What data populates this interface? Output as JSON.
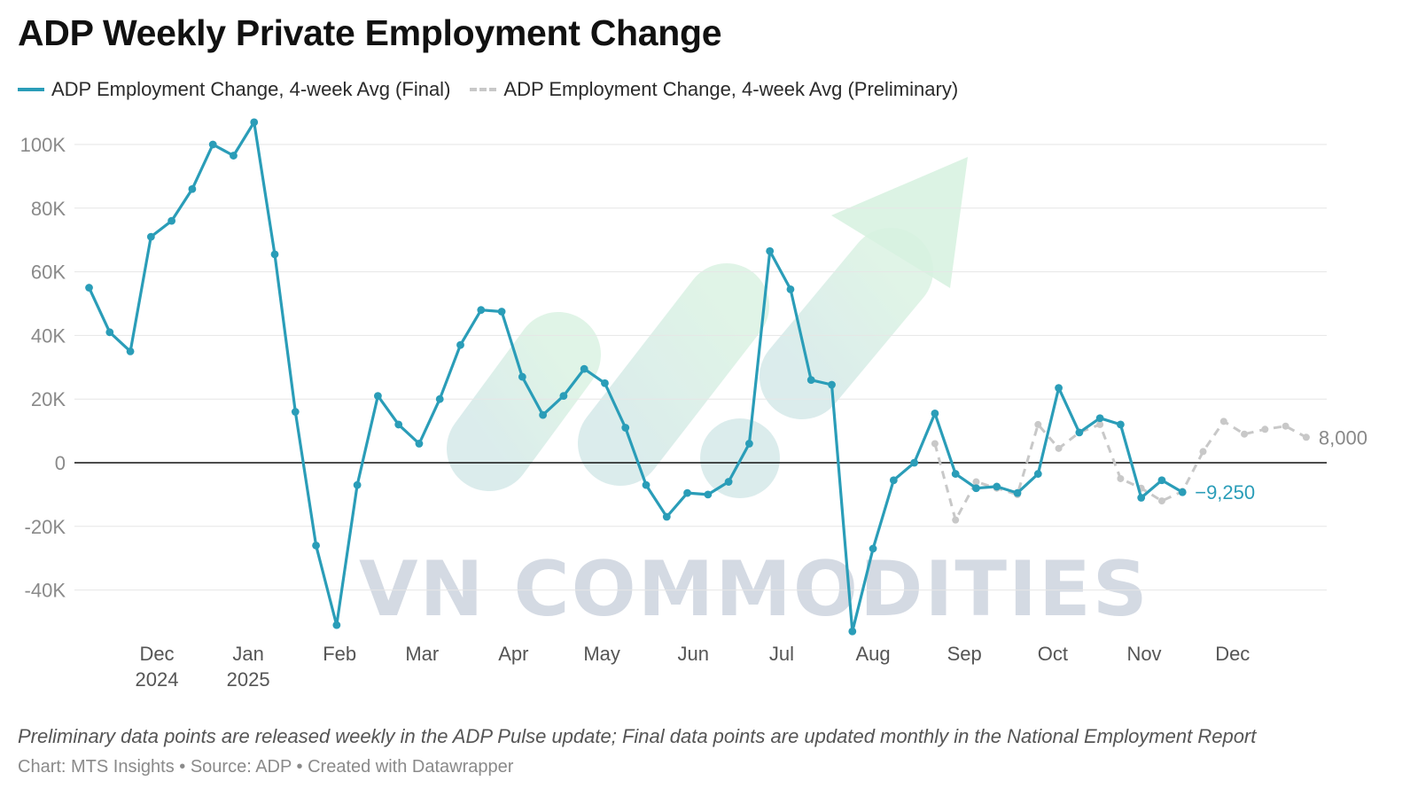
{
  "chart_data": {
    "type": "line",
    "title": "ADP Weekly Private Employment Change",
    "legend": [
      {
        "label": "ADP Employment Change, 4-week Avg (Final)",
        "color": "#2a9db8",
        "style": "solid"
      },
      {
        "label": "ADP Employment Change, 4-week Avg (Preliminary)",
        "color": "#c8c8c8",
        "style": "dashed"
      }
    ],
    "legend_position": "top-left",
    "y_ticks": [
      {
        "value": 100000,
        "label": "100K"
      },
      {
        "value": 80000,
        "label": "80K"
      },
      {
        "value": 60000,
        "label": "60K"
      },
      {
        "value": 40000,
        "label": "40K"
      },
      {
        "value": 20000,
        "label": "20K"
      },
      {
        "value": 0,
        "label": "0"
      },
      {
        "value": -20000,
        "label": "-20K"
      },
      {
        "value": -40000,
        "label": "-40K"
      }
    ],
    "ylim": [
      -55000,
      108000
    ],
    "grid": true,
    "x_ticks": [
      {
        "date": "2024-12-01",
        "label": "Dec",
        "sub": "2024"
      },
      {
        "date": "2025-01-01",
        "label": "Jan",
        "sub": "2025"
      },
      {
        "date": "2025-02-01",
        "label": "Feb"
      },
      {
        "date": "2025-03-01",
        "label": "Mar"
      },
      {
        "date": "2025-04-01",
        "label": "Apr"
      },
      {
        "date": "2025-05-01",
        "label": "May"
      },
      {
        "date": "2025-06-01",
        "label": "Jun"
      },
      {
        "date": "2025-07-01",
        "label": "Jul"
      },
      {
        "date": "2025-08-01",
        "label": "Aug"
      },
      {
        "date": "2025-09-01",
        "label": "Sep"
      },
      {
        "date": "2025-10-01",
        "label": "Oct"
      },
      {
        "date": "2025-11-01",
        "label": "Nov"
      },
      {
        "date": "2025-12-01",
        "label": "Dec"
      }
    ],
    "series": [
      {
        "name": "ADP Employment Change, 4-week Avg (Final)",
        "color": "#2a9db8",
        "style": "solid",
        "end_label": "−9,250",
        "points": [
          [
            "2024-11-08",
            55000
          ],
          [
            "2024-11-15",
            41000
          ],
          [
            "2024-11-22",
            35000
          ],
          [
            "2024-11-29",
            71000
          ],
          [
            "2024-12-06",
            76000
          ],
          [
            "2024-12-13",
            86000
          ],
          [
            "2024-12-20",
            100000
          ],
          [
            "2024-12-27",
            96500
          ],
          [
            "2025-01-03",
            107000
          ],
          [
            "2025-01-10",
            65500
          ],
          [
            "2025-01-17",
            16000
          ],
          [
            "2025-01-24",
            -26000
          ],
          [
            "2025-01-31",
            -51000
          ],
          [
            "2025-02-07",
            -7000
          ],
          [
            "2025-02-14",
            21000
          ],
          [
            "2025-02-21",
            12000
          ],
          [
            "2025-02-28",
            6000
          ],
          [
            "2025-03-07",
            20000
          ],
          [
            "2025-03-14",
            37000
          ],
          [
            "2025-03-21",
            48000
          ],
          [
            "2025-03-28",
            47500
          ],
          [
            "2025-04-04",
            27000
          ],
          [
            "2025-04-11",
            15000
          ],
          [
            "2025-04-18",
            21000
          ],
          [
            "2025-04-25",
            29500
          ],
          [
            "2025-05-02",
            25000
          ],
          [
            "2025-05-09",
            11000
          ],
          [
            "2025-05-16",
            -7000
          ],
          [
            "2025-05-23",
            -17000
          ],
          [
            "2025-05-30",
            -9500
          ],
          [
            "2025-06-06",
            -10000
          ],
          [
            "2025-06-13",
            -6000
          ],
          [
            "2025-06-20",
            6000
          ],
          [
            "2025-06-27",
            66500
          ],
          [
            "2025-07-04",
            54500
          ],
          [
            "2025-07-11",
            26000
          ],
          [
            "2025-07-18",
            24500
          ],
          [
            "2025-07-25",
            -53000
          ],
          [
            "2025-08-01",
            -27000
          ],
          [
            "2025-08-08",
            -5500
          ],
          [
            "2025-08-15",
            0
          ],
          [
            "2025-08-22",
            15500
          ],
          [
            "2025-08-29",
            -3500
          ],
          [
            "2025-09-05",
            -8000
          ],
          [
            "2025-09-12",
            -7500
          ],
          [
            "2025-09-19",
            -9500
          ],
          [
            "2025-09-26",
            -3500
          ],
          [
            "2025-10-03",
            23500
          ],
          [
            "2025-10-10",
            9500
          ],
          [
            "2025-10-17",
            14000
          ],
          [
            "2025-10-24",
            12000
          ],
          [
            "2025-10-31",
            -11000
          ],
          [
            "2025-11-07",
            -5500
          ],
          [
            "2025-11-14",
            -9250
          ]
        ]
      },
      {
        "name": "ADP Employment Change, 4-week Avg (Preliminary)",
        "color": "#c8c8c8",
        "style": "dashed",
        "end_label": "8,000",
        "points": [
          [
            "2025-08-22",
            6000
          ],
          [
            "2025-08-29",
            -18000
          ],
          [
            "2025-09-05",
            -6000
          ],
          [
            "2025-09-12",
            -8000
          ],
          [
            "2025-09-19",
            -10000
          ],
          [
            "2025-09-26",
            12000
          ],
          [
            "2025-10-03",
            4500
          ],
          [
            "2025-10-10",
            9500
          ],
          [
            "2025-10-17",
            12000
          ],
          [
            "2025-10-24",
            -5000
          ],
          [
            "2025-10-31",
            -8000
          ],
          [
            "2025-11-07",
            -12000
          ],
          [
            "2025-11-14",
            -9000
          ],
          [
            "2025-11-21",
            3500
          ],
          [
            "2025-11-28",
            13000
          ],
          [
            "2025-12-05",
            9000
          ],
          [
            "2025-12-12",
            10500
          ],
          [
            "2025-12-19",
            11500
          ],
          [
            "2025-12-26",
            8000
          ]
        ]
      }
    ],
    "watermark": "VN COMMODITIES"
  },
  "note": "Preliminary data points are released weekly in the ADP Pulse update; Final data points are updated monthly in the National Employment Report",
  "source": "Chart: MTS Insights • Source: ADP • Created with Datawrapper"
}
